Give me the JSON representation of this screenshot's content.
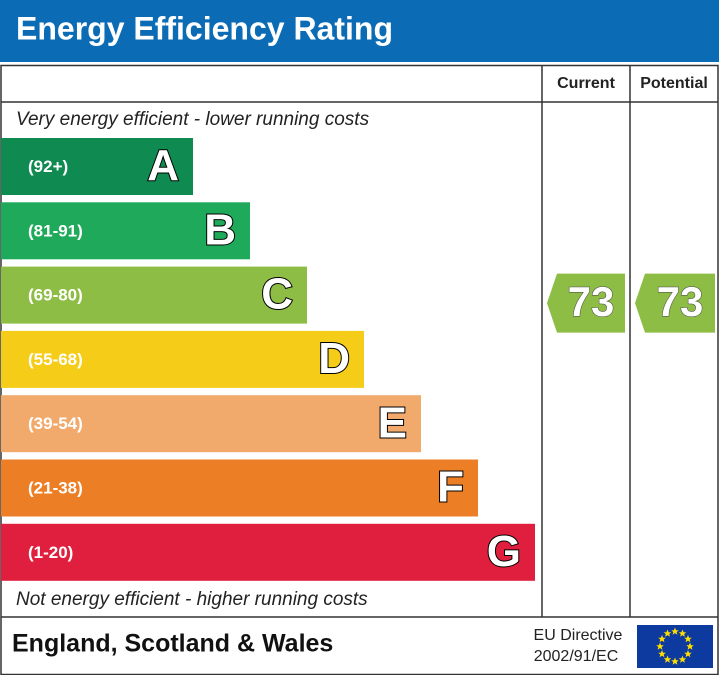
{
  "header": {
    "title": "Energy Efficiency Rating"
  },
  "columns": [
    "Current",
    "Potential"
  ],
  "top_note": "Very energy efficient - lower running costs",
  "bottom_note": "Not energy efficient - higher running costs",
  "bands": [
    {
      "range": "(92+)",
      "letter": "A",
      "color": "#0f8a50"
    },
    {
      "range": "(81-91)",
      "letter": "B",
      "color": "#1fa95a"
    },
    {
      "range": "(69-80)",
      "letter": "C",
      "color": "#8dbd44"
    },
    {
      "range": "(55-68)",
      "letter": "D",
      "color": "#f5cd18"
    },
    {
      "range": "(39-54)",
      "letter": "E",
      "color": "#f2aa6c"
    },
    {
      "range": "(21-38)",
      "letter": "F",
      "color": "#ec7f25"
    },
    {
      "range": "(1-20)",
      "letter": "G",
      "color": "#e01f3e"
    }
  ],
  "ratings": [
    {
      "value": 73
    },
    {
      "value": 73
    }
  ],
  "footer": {
    "region": "England, Scotland & Wales",
    "directive": [
      "EU Directive",
      "2002/91/EC"
    ]
  }
}
